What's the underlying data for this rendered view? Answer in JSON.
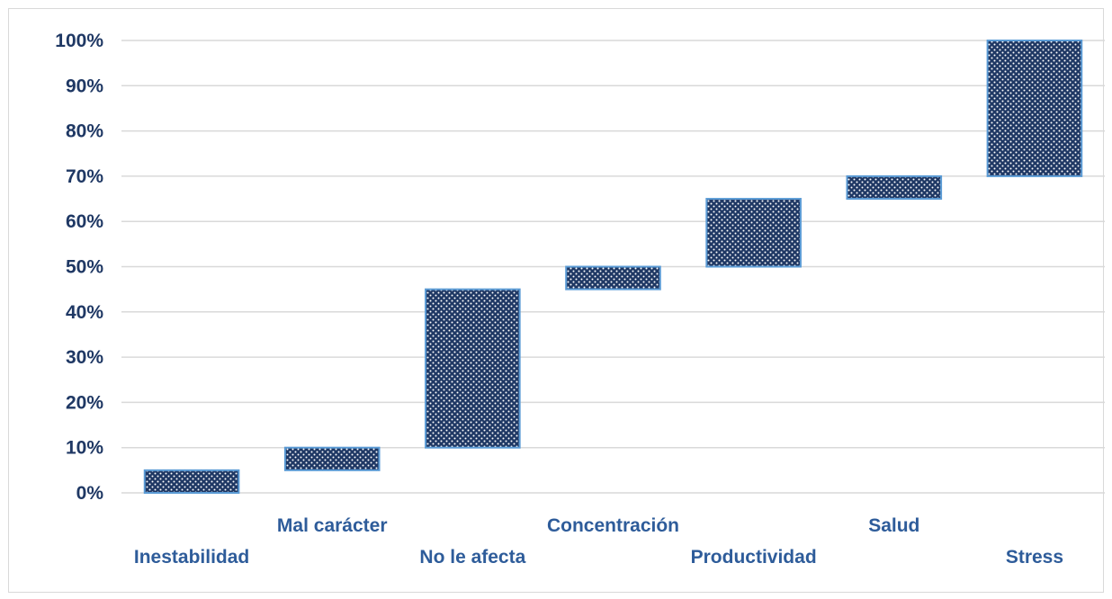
{
  "chart_data": {
    "type": "bar",
    "subtype": "waterfall",
    "title": "",
    "xlabel": "",
    "ylabel": "",
    "ylim": [
      0,
      100
    ],
    "y_unit": "%",
    "yticks": [
      "0%",
      "10%",
      "20%",
      "30%",
      "40%",
      "50%",
      "60%",
      "70%",
      "80%",
      "90%",
      "100%"
    ],
    "grid": true,
    "legend": "none",
    "bar_color": "#1f3864",
    "bar_edge_color": "#5b9bd5",
    "gridline_color": "#d9d9d9",
    "categories": [
      "Inestabilidad",
      "Mal carácter",
      "No le afecta",
      "Concentración",
      "Productividad",
      "Salud",
      "Stress"
    ],
    "values": [
      5,
      5,
      35,
      5,
      15,
      5,
      30
    ],
    "starts": [
      0,
      5,
      10,
      45,
      50,
      65,
      70
    ],
    "ends": [
      5,
      10,
      45,
      50,
      65,
      70,
      100
    ]
  }
}
